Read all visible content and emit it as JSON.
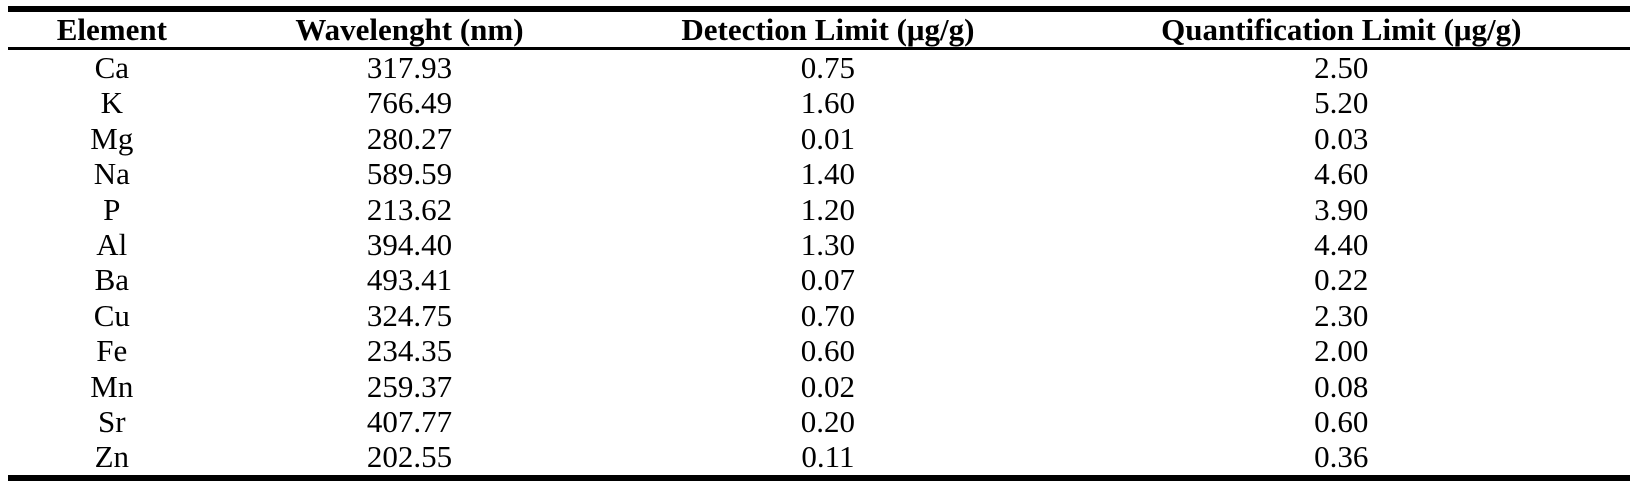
{
  "table": {
    "columns": [
      {
        "label": "Element"
      },
      {
        "label": "Wavelenght (nm)"
      },
      {
        "label": "Detection Limit (μg/g)"
      },
      {
        "label": "Quantification Limit (μg/g)"
      }
    ],
    "rows": [
      {
        "element": "Ca",
        "wavelength_nm": "317.93",
        "detection_limit": "0.75",
        "quantification_limit": "2.50"
      },
      {
        "element": "K",
        "wavelength_nm": "766.49",
        "detection_limit": "1.60",
        "quantification_limit": "5.20"
      },
      {
        "element": "Mg",
        "wavelength_nm": "280.27",
        "detection_limit": "0.01",
        "quantification_limit": "0.03"
      },
      {
        "element": "Na",
        "wavelength_nm": "589.59",
        "detection_limit": "1.40",
        "quantification_limit": "4.60"
      },
      {
        "element": "P",
        "wavelength_nm": "213.62",
        "detection_limit": "1.20",
        "quantification_limit": "3.90"
      },
      {
        "element": "Al",
        "wavelength_nm": "394.40",
        "detection_limit": "1.30",
        "quantification_limit": "4.40"
      },
      {
        "element": "Ba",
        "wavelength_nm": "493.41",
        "detection_limit": "0.07",
        "quantification_limit": "0.22"
      },
      {
        "element": "Cu",
        "wavelength_nm": "324.75",
        "detection_limit": "0.70",
        "quantification_limit": "2.30"
      },
      {
        "element": "Fe",
        "wavelength_nm": "234.35",
        "detection_limit": "0.60",
        "quantification_limit": "2.00"
      },
      {
        "element": "Mn",
        "wavelength_nm": "259.37",
        "detection_limit": "0.02",
        "quantification_limit": "0.08"
      },
      {
        "element": "Sr",
        "wavelength_nm": "407.77",
        "detection_limit": "0.20",
        "quantification_limit": "0.60"
      },
      {
        "element": "Zn",
        "wavelength_nm": "202.55",
        "detection_limit": "0.11",
        "quantification_limit": "0.36"
      }
    ]
  },
  "chart_data": {
    "type": "table",
    "columns": [
      "Element",
      "Wavelenght (nm)",
      "Detection Limit (μg/g)",
      "Quantification Limit (μg/g)"
    ],
    "rows": [
      [
        "Ca",
        317.93,
        0.75,
        2.5
      ],
      [
        "K",
        766.49,
        1.6,
        5.2
      ],
      [
        "Mg",
        280.27,
        0.01,
        0.03
      ],
      [
        "Na",
        589.59,
        1.4,
        4.6
      ],
      [
        "P",
        213.62,
        1.2,
        3.9
      ],
      [
        "Al",
        394.4,
        1.3,
        4.4
      ],
      [
        "Ba",
        493.41,
        0.07,
        0.22
      ],
      [
        "Cu",
        324.75,
        0.7,
        2.3
      ],
      [
        "Fe",
        234.35,
        0.6,
        2.0
      ],
      [
        "Mn",
        259.37,
        0.02,
        0.08
      ],
      [
        "Sr",
        407.77,
        0.2,
        0.6
      ],
      [
        "Zn",
        202.55,
        0.11,
        0.36
      ]
    ],
    "colors": {
      "text": "#000000",
      "rule": "#000000",
      "background": "#ffffff"
    }
  }
}
